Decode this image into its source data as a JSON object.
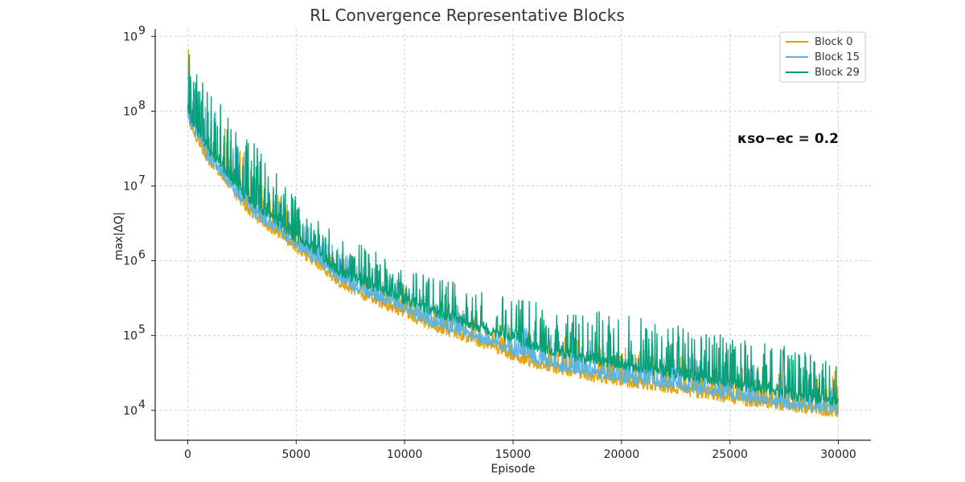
{
  "chart_data": {
    "type": "line",
    "title": "RL Convergence Representative Blocks",
    "xlabel": "Episode",
    "ylabel": "max|ΔQ|",
    "xlim": [
      -1500,
      31500
    ],
    "xticks": [
      0,
      5000,
      10000,
      15000,
      20000,
      25000,
      30000
    ],
    "xtick_labels": [
      "0",
      "5000",
      "10000",
      "15000",
      "20000",
      "25000",
      "30000"
    ],
    "yscale": "log",
    "ylim_log10": [
      3.6,
      9.1
    ],
    "yticks_log10": [
      4,
      5,
      6,
      7,
      8,
      9
    ],
    "ytick_bases": [
      "10",
      "10",
      "10",
      "10",
      "10",
      "10"
    ],
    "ytick_exponents": [
      "4",
      "5",
      "6",
      "7",
      "8",
      "9"
    ],
    "grid": true,
    "legend_position": "top-right",
    "annotation": "κso−ec = 0.2",
    "series": [
      {
        "name": "Block 0",
        "color": "#E69F00",
        "x": [
          0,
          300,
          1000,
          1500,
          2000,
          3000,
          4000,
          5000,
          6000,
          7000,
          8000,
          9000,
          10000,
          11000,
          12000,
          13000,
          14000,
          15000,
          16000,
          17000,
          18000,
          19000,
          20000,
          21000,
          22000,
          23000,
          24000,
          25000,
          26000,
          27000,
          28000,
          29000,
          30000
        ],
        "baseline_log10": [
          7.9,
          7.7,
          7.3,
          7.15,
          6.95,
          6.6,
          6.4,
          6.15,
          5.95,
          5.7,
          5.55,
          5.42,
          5.3,
          5.15,
          5.05,
          4.95,
          4.85,
          4.72,
          4.62,
          4.55,
          4.48,
          4.42,
          4.38,
          4.33,
          4.3,
          4.25,
          4.2,
          4.15,
          4.1,
          4.07,
          4.03,
          4.0,
          3.95
        ],
        "peak_log10": [
          8.95,
          8.5,
          8.1,
          7.9,
          7.7,
          7.3,
          7.0,
          6.6,
          6.3,
          6.1,
          5.95,
          5.8,
          5.65,
          5.5,
          5.4,
          5.3,
          5.25,
          5.15,
          5.05,
          5.0,
          4.95,
          4.9,
          4.85,
          4.8,
          4.75,
          4.72,
          4.7,
          4.65,
          4.6,
          4.55,
          4.5,
          4.45,
          4.6
        ]
      },
      {
        "name": "Block 15",
        "color": "#56B4E9",
        "x": [
          0,
          300,
          1000,
          1500,
          2000,
          3000,
          4000,
          5000,
          6000,
          7000,
          8000,
          9000,
          10000,
          11000,
          12000,
          13000,
          14000,
          15000,
          16000,
          17000,
          18000,
          19000,
          20000,
          21000,
          22000,
          23000,
          24000,
          25000,
          26000,
          27000,
          28000,
          29000,
          30000
        ],
        "baseline_log10": [
          7.95,
          7.75,
          7.35,
          7.2,
          7.0,
          6.65,
          6.45,
          6.2,
          6.0,
          5.75,
          5.6,
          5.48,
          5.35,
          5.2,
          5.1,
          5.0,
          4.9,
          4.78,
          4.68,
          4.6,
          4.53,
          4.48,
          4.43,
          4.38,
          4.34,
          4.3,
          4.25,
          4.2,
          4.15,
          4.1,
          4.06,
          4.02,
          4.0
        ],
        "peak_log10": [
          8.9,
          8.5,
          8.1,
          7.9,
          7.7,
          7.35,
          7.05,
          6.65,
          6.35,
          6.15,
          6.0,
          5.85,
          5.7,
          5.55,
          5.45,
          5.35,
          5.25,
          5.15,
          5.08,
          5.02,
          4.98,
          4.93,
          4.88,
          4.83,
          4.78,
          4.75,
          4.72,
          4.68,
          4.62,
          4.58,
          4.55,
          4.5,
          4.3
        ]
      },
      {
        "name": "Block 29",
        "color": "#009E73",
        "x": [
          0,
          300,
          1000,
          1500,
          2000,
          3000,
          4000,
          5000,
          6000,
          7000,
          8000,
          9000,
          10000,
          11000,
          12000,
          13000,
          14000,
          15000,
          16000,
          17000,
          18000,
          19000,
          20000,
          21000,
          22000,
          23000,
          24000,
          25000,
          26000,
          27000,
          28000,
          29000,
          30000
        ],
        "baseline_log10": [
          8.0,
          7.8,
          7.45,
          7.3,
          7.1,
          6.75,
          6.55,
          6.3,
          6.1,
          5.85,
          5.72,
          5.6,
          5.48,
          5.35,
          5.25,
          5.15,
          5.05,
          4.95,
          4.85,
          4.78,
          4.7,
          4.65,
          4.6,
          4.55,
          4.5,
          4.45,
          4.4,
          4.35,
          4.3,
          4.25,
          4.18,
          4.15,
          4.1
        ],
        "peak_log10": [
          9.0,
          8.6,
          8.3,
          8.1,
          7.9,
          7.6,
          7.2,
          6.85,
          6.55,
          6.35,
          6.25,
          6.1,
          5.9,
          5.8,
          5.75,
          5.65,
          5.55,
          5.5,
          5.45,
          5.4,
          5.35,
          5.32,
          5.3,
          5.25,
          5.2,
          5.1,
          5.05,
          5.0,
          4.95,
          4.9,
          4.85,
          4.82,
          4.75
        ]
      }
    ]
  }
}
